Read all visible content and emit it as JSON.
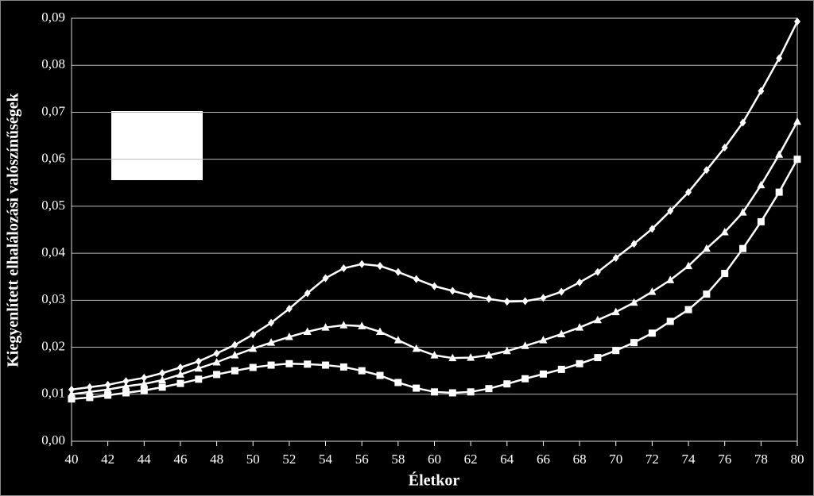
{
  "chart_data": {
    "type": "line",
    "xlabel": "Életkor",
    "ylabel": "Kiegyenlített elhalálozási valószínűségek",
    "x": [
      40,
      41,
      42,
      43,
      44,
      45,
      46,
      47,
      48,
      49,
      50,
      51,
      52,
      53,
      54,
      55,
      56,
      57,
      58,
      59,
      60,
      61,
      62,
      63,
      64,
      65,
      66,
      67,
      68,
      69,
      70,
      71,
      72,
      73,
      74,
      75,
      76,
      77,
      78,
      79,
      80
    ],
    "series": [
      {
        "color": "#ffffff",
        "marker": "diamond",
        "values": [
          0.011,
          0.0115,
          0.012,
          0.0128,
          0.0135,
          0.0145,
          0.0157,
          0.017,
          0.0187,
          0.0205,
          0.0227,
          0.0252,
          0.0282,
          0.0315,
          0.0347,
          0.0368,
          0.0377,
          0.0373,
          0.036,
          0.0345,
          0.033,
          0.032,
          0.031,
          0.0303,
          0.0297,
          0.0298,
          0.0305,
          0.0318,
          0.0338,
          0.036,
          0.039,
          0.042,
          0.0452,
          0.049,
          0.053,
          0.0577,
          0.0625,
          0.0678,
          0.0745,
          0.0815,
          0.0893
        ]
      },
      {
        "color": "#ffffff",
        "marker": "triangle",
        "values": [
          0.01,
          0.0105,
          0.011,
          0.0117,
          0.0122,
          0.013,
          0.0142,
          0.0155,
          0.0168,
          0.0183,
          0.0197,
          0.021,
          0.0222,
          0.0233,
          0.0242,
          0.0247,
          0.0245,
          0.0233,
          0.0215,
          0.0197,
          0.0183,
          0.0177,
          0.0178,
          0.0183,
          0.0192,
          0.0203,
          0.0215,
          0.0228,
          0.0242,
          0.0258,
          0.0275,
          0.0295,
          0.0318,
          0.0343,
          0.0373,
          0.041,
          0.0445,
          0.0487,
          0.0545,
          0.061,
          0.068
        ]
      },
      {
        "color": "#ffffff",
        "marker": "square",
        "values": [
          0.009,
          0.0093,
          0.0098,
          0.0103,
          0.0108,
          0.0115,
          0.0123,
          0.0132,
          0.0142,
          0.015,
          0.0157,
          0.0162,
          0.0165,
          0.0164,
          0.0162,
          0.0158,
          0.015,
          0.014,
          0.0125,
          0.0113,
          0.0105,
          0.0103,
          0.0105,
          0.0112,
          0.0122,
          0.0133,
          0.0143,
          0.0153,
          0.0165,
          0.0178,
          0.0193,
          0.021,
          0.023,
          0.0255,
          0.028,
          0.0313,
          0.0357,
          0.041,
          0.0467,
          0.053,
          0.06
        ]
      }
    ],
    "xlim": [
      40,
      80
    ],
    "xticks": [
      40,
      42,
      44,
      46,
      48,
      50,
      52,
      54,
      56,
      58,
      60,
      62,
      64,
      66,
      68,
      70,
      72,
      74,
      76,
      78,
      80
    ],
    "ylim": [
      0,
      0.09
    ],
    "yticks": [
      {
        "value": 0,
        "label": "0,00"
      },
      {
        "value": 0.01,
        "label": "0,01"
      },
      {
        "value": 0.02,
        "label": "0,02"
      },
      {
        "value": 0.03,
        "label": "0,03"
      },
      {
        "value": 0.04,
        "label": "0,04"
      },
      {
        "value": 0.05,
        "label": "0,05"
      },
      {
        "value": 0.06,
        "label": "0,06"
      },
      {
        "value": 0.07,
        "label": "0,07"
      },
      {
        "value": 0.08,
        "label": "0,08"
      },
      {
        "value": 0.09,
        "label": "0,09"
      }
    ],
    "grid": true
  }
}
